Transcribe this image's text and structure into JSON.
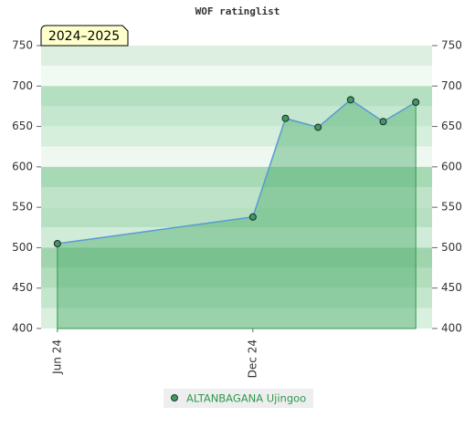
{
  "chart_data": {
    "type": "line",
    "title": "WOF ratinglist",
    "annotation": "2024–2025",
    "x": [
      0,
      6,
      7,
      8,
      9,
      10,
      11
    ],
    "xlim": [
      -0.5,
      11.5
    ],
    "xticks": [
      {
        "value": 0,
        "label": "Jun 24"
      },
      {
        "value": 6,
        "label": "Dec 24"
      }
    ],
    "series": [
      {
        "name": "ALTANBAGANA Ujingoo",
        "color": "#5b9bd5",
        "marker_color": "#3f9a5c",
        "fill_color": "#4cae6c",
        "values": [
          505,
          538,
          660,
          649,
          683,
          656,
          680
        ]
      }
    ],
    "ylim": [
      400,
      750
    ],
    "yticks": [
      400,
      450,
      500,
      550,
      600,
      650,
      700,
      750
    ],
    "grid": true
  }
}
